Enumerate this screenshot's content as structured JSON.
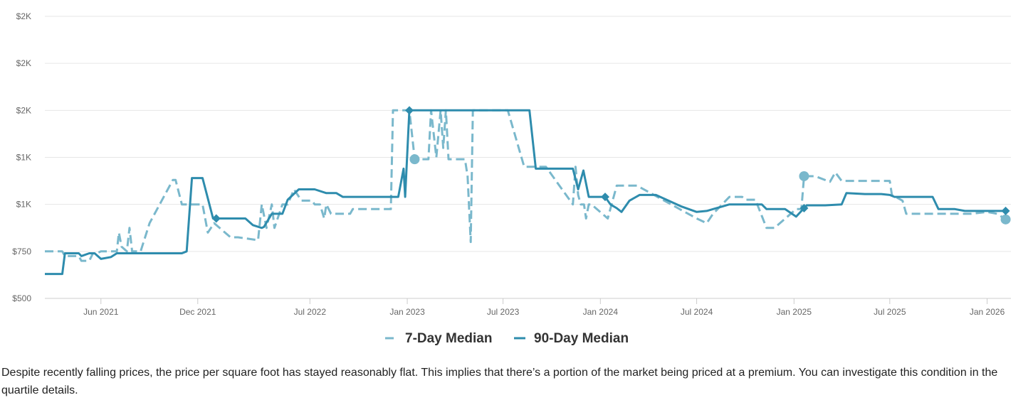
{
  "chart_data": {
    "type": "line",
    "title": "",
    "xlabel": "",
    "ylabel": "",
    "y_ticks": [
      {
        "value": 500,
        "label": "$500"
      },
      {
        "value": 750,
        "label": "$750"
      },
      {
        "value": 1000,
        "label": "$1K"
      },
      {
        "value": 1250,
        "label": "$1K"
      },
      {
        "value": 1500,
        "label": "$2K"
      },
      {
        "value": 1750,
        "label": "$2K"
      },
      {
        "value": 2000,
        "label": "$2K"
      }
    ],
    "ylim": [
      500,
      2000
    ],
    "xlim": [
      "2021-02-15",
      "2026-02-15"
    ],
    "x_ticks": [
      {
        "date": "2021-06-01",
        "label": "Jun 2021"
      },
      {
        "date": "2021-12-01",
        "label": "Dec 2021"
      },
      {
        "date": "2022-07-01",
        "label": "Jul 2022"
      },
      {
        "date": "2023-01-01",
        "label": "Jan 2023"
      },
      {
        "date": "2023-07-01",
        "label": "Jul 2023"
      },
      {
        "date": "2024-01-01",
        "label": "Jan 2024"
      },
      {
        "date": "2024-07-01",
        "label": "Jul 2024"
      },
      {
        "date": "2025-01-01",
        "label": "Jan 2025"
      },
      {
        "date": "2025-07-01",
        "label": "Jul 2025"
      },
      {
        "date": "2026-01-01",
        "label": "Jan 2026"
      }
    ],
    "grid": true,
    "legend_position": "bottom-center",
    "series": [
      {
        "name": "7-Day Median",
        "color": "#7ab8cc",
        "dash": true,
        "points": [
          [
            "2021-02-15",
            750
          ],
          [
            "2021-03-20",
            750
          ],
          [
            "2021-03-25",
            725
          ],
          [
            "2021-04-20",
            725
          ],
          [
            "2021-04-25",
            700
          ],
          [
            "2021-05-10",
            700
          ],
          [
            "2021-05-17",
            740
          ],
          [
            "2021-05-24",
            740
          ],
          [
            "2021-06-01",
            750
          ],
          [
            "2021-07-01",
            750
          ],
          [
            "2021-07-05",
            850
          ],
          [
            "2021-07-10",
            775
          ],
          [
            "2021-07-20",
            750
          ],
          [
            "2021-07-25",
            875
          ],
          [
            "2021-07-30",
            750
          ],
          [
            "2021-08-15",
            750
          ],
          [
            "2021-09-01",
            900
          ],
          [
            "2021-10-15",
            1130
          ],
          [
            "2021-10-20",
            1130
          ],
          [
            "2021-11-01",
            1000
          ],
          [
            "2021-12-01",
            1000
          ],
          [
            "2021-12-10",
            1000
          ],
          [
            "2021-12-20",
            850
          ],
          [
            "2022-01-01",
            900
          ],
          [
            "2022-02-01",
            825
          ],
          [
            "2022-02-15",
            825
          ],
          [
            "2022-03-25",
            810
          ],
          [
            "2022-04-01",
            1000
          ],
          [
            "2022-04-10",
            875
          ],
          [
            "2022-04-20",
            1000
          ],
          [
            "2022-04-25",
            875
          ],
          [
            "2022-05-10",
            1000
          ],
          [
            "2022-05-20",
            1000
          ],
          [
            "2022-06-01",
            1080
          ],
          [
            "2022-06-15",
            1020
          ],
          [
            "2022-07-05",
            1020
          ],
          [
            "2022-07-10",
            1000
          ],
          [
            "2022-07-20",
            1000
          ],
          [
            "2022-07-28",
            925
          ],
          [
            "2022-08-01",
            1000
          ],
          [
            "2022-08-10",
            950
          ],
          [
            "2022-08-20",
            950
          ],
          [
            "2022-09-15",
            950
          ],
          [
            "2022-09-20",
            975
          ],
          [
            "2022-10-01",
            975
          ],
          [
            "2022-12-01",
            975
          ],
          [
            "2022-12-05",
            1500
          ],
          [
            "2022-12-20",
            1500
          ],
          [
            "2022-12-30",
            1500
          ],
          [
            "2023-01-05",
            1500
          ],
          [
            "2023-01-15",
            1240
          ],
          [
            "2023-02-10",
            1240
          ],
          [
            "2023-02-15",
            1500
          ],
          [
            "2023-02-25",
            1250
          ],
          [
            "2023-03-05",
            1500
          ],
          [
            "2023-03-10",
            1300
          ],
          [
            "2023-03-15",
            1500
          ],
          [
            "2023-03-20",
            1240
          ],
          [
            "2023-04-05",
            1240
          ],
          [
            "2023-04-20",
            1240
          ],
          [
            "2023-04-25",
            1150
          ],
          [
            "2023-05-01",
            800
          ],
          [
            "2023-05-05",
            1500
          ],
          [
            "2023-06-20",
            1500
          ],
          [
            "2023-07-01",
            1500
          ],
          [
            "2023-07-10",
            1500
          ],
          [
            "2023-08-10",
            1200
          ],
          [
            "2023-09-20",
            1200
          ],
          [
            "2023-11-10",
            1000
          ],
          [
            "2023-11-15",
            1200
          ],
          [
            "2023-11-20",
            1050
          ],
          [
            "2023-11-25",
            1000
          ],
          [
            "2023-12-01",
            1000
          ],
          [
            "2023-12-05",
            925
          ],
          [
            "2023-12-10",
            1000
          ],
          [
            "2023-12-15",
            1000
          ],
          [
            "2024-01-15",
            925
          ],
          [
            "2024-02-01",
            1100
          ],
          [
            "2024-03-10",
            1100
          ],
          [
            "2024-07-01",
            925
          ],
          [
            "2024-07-20",
            900
          ],
          [
            "2024-08-01",
            950
          ],
          [
            "2024-09-01",
            1040
          ],
          [
            "2024-09-25",
            1040
          ],
          [
            "2024-10-01",
            1025
          ],
          [
            "2024-10-20",
            1025
          ],
          [
            "2024-11-10",
            875
          ],
          [
            "2024-11-25",
            875
          ],
          [
            "2025-01-05",
            975
          ],
          [
            "2025-01-15",
            975
          ],
          [
            "2025-01-20",
            1150
          ],
          [
            "2025-02-10",
            1150
          ],
          [
            "2025-03-10",
            1120
          ],
          [
            "2025-03-20",
            1170
          ],
          [
            "2025-04-01",
            1125
          ],
          [
            "2025-04-10",
            1125
          ],
          [
            "2025-05-01",
            1125
          ],
          [
            "2025-05-10",
            1125
          ],
          [
            "2025-06-01",
            1125
          ],
          [
            "2025-07-01",
            1125
          ],
          [
            "2025-07-05",
            1050
          ],
          [
            "2025-07-25",
            1020
          ],
          [
            "2025-08-01",
            950
          ],
          [
            "2025-09-01",
            950
          ],
          [
            "2025-11-01",
            950
          ],
          [
            "2025-12-01",
            950
          ],
          [
            "2026-01-01",
            960
          ],
          [
            "2026-01-20",
            950
          ],
          [
            "2026-02-05",
            920
          ]
        ],
        "markers": [
          [
            "2023-01-15",
            1240
          ],
          [
            "2025-01-20",
            1150
          ],
          [
            "2026-02-05",
            920
          ]
        ]
      },
      {
        "name": "90-Day Median",
        "color": "#2e8cad",
        "dash": false,
        "points": [
          [
            "2021-02-15",
            630
          ],
          [
            "2021-03-20",
            630
          ],
          [
            "2021-03-25",
            740
          ],
          [
            "2021-04-20",
            740
          ],
          [
            "2021-04-25",
            725
          ],
          [
            "2021-05-10",
            740
          ],
          [
            "2021-05-20",
            740
          ],
          [
            "2021-06-01",
            710
          ],
          [
            "2021-06-20",
            720
          ],
          [
            "2021-07-01",
            740
          ],
          [
            "2021-11-01",
            740
          ],
          [
            "2021-11-10",
            750
          ],
          [
            "2021-11-20",
            1140
          ],
          [
            "2021-12-10",
            1140
          ],
          [
            "2021-12-30",
            925
          ],
          [
            "2022-01-05",
            925
          ],
          [
            "2022-02-15",
            925
          ],
          [
            "2022-03-01",
            925
          ],
          [
            "2022-03-15",
            890
          ],
          [
            "2022-04-01",
            875
          ],
          [
            "2022-04-05",
            880
          ],
          [
            "2022-04-20",
            950
          ],
          [
            "2022-05-10",
            950
          ],
          [
            "2022-05-20",
            1025
          ],
          [
            "2022-06-10",
            1080
          ],
          [
            "2022-06-20",
            1080
          ],
          [
            "2022-07-10",
            1080
          ],
          [
            "2022-08-01",
            1060
          ],
          [
            "2022-08-20",
            1060
          ],
          [
            "2022-09-01",
            1040
          ],
          [
            "2022-12-15",
            1040
          ],
          [
            "2022-12-25",
            1190
          ],
          [
            "2022-12-28",
            1040
          ],
          [
            "2023-01-05",
            1500
          ],
          [
            "2023-05-01",
            1500
          ],
          [
            "2023-08-01",
            1500
          ],
          [
            "2023-08-20",
            1500
          ],
          [
            "2023-09-01",
            1190
          ],
          [
            "2023-11-10",
            1190
          ],
          [
            "2023-11-20",
            1080
          ],
          [
            "2023-11-30",
            1180
          ],
          [
            "2023-12-10",
            1040
          ],
          [
            "2024-01-01",
            1040
          ],
          [
            "2024-01-10",
            1040
          ],
          [
            "2024-01-20",
            1000
          ],
          [
            "2024-02-01",
            980
          ],
          [
            "2024-02-10",
            960
          ],
          [
            "2024-02-25",
            1020
          ],
          [
            "2024-03-15",
            1050
          ],
          [
            "2024-04-15",
            1050
          ],
          [
            "2024-06-01",
            990
          ],
          [
            "2024-07-01",
            960
          ],
          [
            "2024-07-20",
            965
          ],
          [
            "2024-08-01",
            975
          ],
          [
            "2024-09-01",
            1000
          ],
          [
            "2024-11-01",
            1000
          ],
          [
            "2024-11-10",
            975
          ],
          [
            "2024-12-15",
            975
          ],
          [
            "2025-01-05",
            935
          ],
          [
            "2025-01-20",
            980
          ],
          [
            "2025-01-25",
            995
          ],
          [
            "2025-03-01",
            995
          ],
          [
            "2025-04-01",
            1000
          ],
          [
            "2025-04-10",
            1060
          ],
          [
            "2025-05-15",
            1055
          ],
          [
            "2025-06-15",
            1055
          ],
          [
            "2025-07-01",
            1050
          ],
          [
            "2025-07-10",
            1040
          ],
          [
            "2025-07-20",
            1040
          ],
          [
            "2025-09-20",
            1040
          ],
          [
            "2025-10-01",
            975
          ],
          [
            "2025-11-01",
            975
          ],
          [
            "2025-11-20",
            965
          ],
          [
            "2025-12-20",
            965
          ],
          [
            "2026-01-10",
            965
          ],
          [
            "2026-02-05",
            965
          ]
        ],
        "markers": [
          [
            "2022-01-05",
            925
          ],
          [
            "2023-01-05",
            1500
          ],
          [
            "2024-01-10",
            1040
          ],
          [
            "2025-01-20",
            980
          ],
          [
            "2026-02-05",
            965
          ]
        ]
      }
    ]
  },
  "description": {
    "text": "Despite recently falling prices, the price per square foot has stayed reasonably flat. This implies that there’s a portion of the market being priced at a premium. You can investigate this condition in the quartile details."
  }
}
